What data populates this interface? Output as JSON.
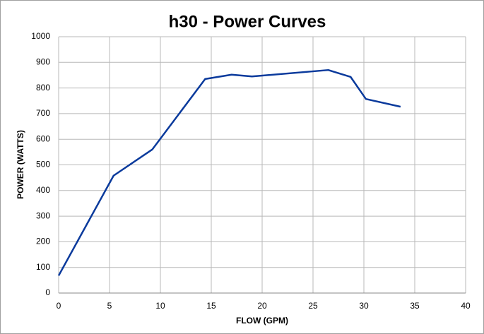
{
  "chart_data": {
    "type": "line",
    "title": "h30 - Power Curves",
    "xlabel": "FLOW (GPM)",
    "ylabel": "POWER (WATTS)",
    "x": [
      0,
      5.4,
      9.2,
      14.4,
      17,
      19,
      26.5,
      28.7,
      30.2,
      33.6
    ],
    "series": [
      {
        "name": "h30",
        "color": "#0a3a9c",
        "values": [
          68,
          458,
          560,
          835,
          852,
          845,
          870,
          843,
          757,
          727
        ]
      }
    ],
    "xlim": [
      0,
      40
    ],
    "xticks": [
      0,
      5,
      10,
      15,
      20,
      25,
      30,
      35,
      40
    ],
    "ylim": [
      0,
      1000
    ],
    "yticks": [
      0,
      100,
      200,
      300,
      400,
      500,
      600,
      700,
      800,
      900,
      1000
    ],
    "grid": true,
    "legend": false
  }
}
